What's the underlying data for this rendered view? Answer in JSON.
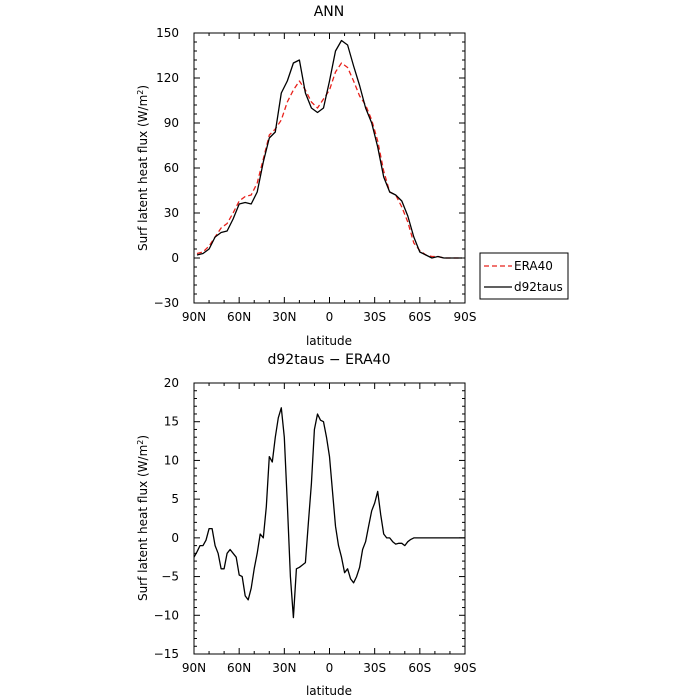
{
  "chart_data": [
    {
      "type": "line",
      "title": "ANN",
      "xlabel": "latitude",
      "ylabel": "Surf latent heat flux (W/m²)",
      "ylabel_main": "Surf latent heat flux (W/m",
      "ylabel_sup": "2",
      "ylabel_close": ")",
      "xlim": [
        90,
        -90
      ],
      "ylim": [
        -30,
        150
      ],
      "x_ticks": [
        90,
        60,
        30,
        0,
        -30,
        -60,
        -90
      ],
      "x_tick_labels": [
        "90N",
        "60N",
        "30N",
        "0",
        "30S",
        "60S",
        "90S"
      ],
      "y_ticks": [
        -30,
        0,
        30,
        60,
        90,
        120,
        150
      ],
      "y_tick_labels": [
        "−30",
        "0",
        "30",
        "60",
        "90",
        "120",
        "150"
      ],
      "grid": false,
      "legend": "right-outside",
      "series": [
        {
          "name": "ERA40",
          "color": "#e8211b",
          "style": "dashed",
          "x": [
            88,
            84,
            80,
            76,
            72,
            68,
            64,
            60,
            56,
            52,
            48,
            44,
            40,
            36,
            32,
            28,
            24,
            20,
            16,
            12,
            8,
            4,
            0,
            -4,
            -8,
            -12,
            -16,
            -20,
            -24,
            -28,
            -32,
            -36,
            -40,
            -44,
            -48,
            -52,
            -56,
            -60,
            -64,
            -68,
            -72,
            -76,
            -80,
            -84,
            -88
          ],
          "values": [
            3,
            4,
            8,
            14,
            20,
            23,
            30,
            38,
            41,
            42,
            50,
            66,
            82,
            86,
            92,
            104,
            112,
            118,
            112,
            104,
            100,
            106,
            112,
            124,
            130,
            127,
            118,
            108,
            102,
            92,
            78,
            58,
            44,
            42,
            34,
            24,
            10,
            5,
            2,
            1,
            1,
            0,
            0,
            0,
            0
          ]
        },
        {
          "name": "d92taus",
          "color": "#000000",
          "style": "solid",
          "x": [
            88,
            84,
            80,
            76,
            72,
            68,
            64,
            60,
            56,
            52,
            48,
            44,
            40,
            36,
            32,
            28,
            24,
            20,
            16,
            12,
            8,
            4,
            0,
            -4,
            -8,
            -12,
            -16,
            -20,
            -24,
            -28,
            -32,
            -36,
            -40,
            -44,
            -48,
            -52,
            -56,
            -60,
            -64,
            -68,
            -72,
            -76,
            -80,
            -84,
            -88
          ],
          "values": [
            2,
            3,
            6,
            14,
            17,
            18,
            26,
            36,
            37,
            36,
            44,
            64,
            80,
            84,
            110,
            118,
            130,
            132,
            110,
            100,
            97,
            100,
            118,
            138,
            145,
            142,
            128,
            115,
            100,
            90,
            74,
            54,
            44,
            42,
            38,
            28,
            14,
            4,
            2,
            0,
            1,
            0,
            0,
            0,
            0
          ]
        }
      ]
    },
    {
      "type": "line",
      "title": "d92taus − ERA40",
      "xlabel": "latitude",
      "ylabel": "Surf latent heat flux (W/m²)",
      "ylabel_main": "Surf latent heat flux (W/m",
      "ylabel_sup": "2",
      "ylabel_close": ")",
      "xlim": [
        90,
        -90
      ],
      "ylim": [
        -15,
        20
      ],
      "x_ticks": [
        90,
        60,
        30,
        0,
        -30,
        -60,
        -90
      ],
      "x_tick_labels": [
        "90N",
        "60N",
        "30N",
        "0",
        "30S",
        "60S",
        "90S"
      ],
      "y_ticks": [
        -15,
        -10,
        -5,
        0,
        5,
        10,
        15,
        20
      ],
      "y_tick_labels": [
        "−15",
        "−10",
        "−5",
        "0",
        "5",
        "10",
        "15",
        "20"
      ],
      "grid": false,
      "series": [
        {
          "color": "#000000",
          "style": "solid",
          "x": [
            90,
            88,
            86,
            84,
            82,
            80,
            78,
            76,
            74,
            72,
            70,
            68,
            66,
            64,
            62,
            60,
            58,
            56,
            54,
            52,
            50,
            48,
            46,
            44,
            42,
            40,
            38,
            36,
            34,
            32,
            30,
            28,
            26,
            24,
            22,
            20,
            18,
            16,
            14,
            12,
            10,
            8,
            6,
            4,
            2,
            0,
            -2,
            -4,
            -6,
            -8,
            -10,
            -12,
            -14,
            -16,
            -18,
            -20,
            -22,
            -24,
            -26,
            -28,
            -30,
            -32,
            -34,
            -36,
            -38,
            -40,
            -42,
            -44,
            -46,
            -48,
            -50,
            -52,
            -54,
            -56,
            -58,
            -60,
            -62,
            -64,
            -66,
            -68,
            -70,
            -72,
            -74,
            -76,
            -78,
            -80,
            -82,
            -84,
            -86,
            -88,
            -90
          ],
          "values": [
            -2.5,
            -1.8,
            -1.0,
            -1.0,
            -0.3,
            1.2,
            1.2,
            -1.0,
            -2.0,
            -4.0,
            -4.0,
            -2.0,
            -1.5,
            -2.0,
            -2.5,
            -4.8,
            -5.0,
            -7.5,
            -8.0,
            -6.5,
            -4.0,
            -2.0,
            0.5,
            0.0,
            4.0,
            10.5,
            9.8,
            13.0,
            15.5,
            16.8,
            13.0,
            4.5,
            -5.0,
            -10.3,
            -4.0,
            -3.8,
            -3.5,
            -3.2,
            2.0,
            7.0,
            14.0,
            16.0,
            15.2,
            15.0,
            13.0,
            10.5,
            6.0,
            1.5,
            -1.0,
            -2.5,
            -4.5,
            -4.0,
            -5.3,
            -5.8,
            -5.0,
            -3.8,
            -1.5,
            -0.5,
            1.5,
            3.5,
            4.5,
            6.0,
            3.0,
            0.5,
            0.0,
            0.0,
            -0.5,
            -0.8,
            -0.7,
            -0.7,
            -1.0,
            -0.5,
            -0.2,
            0.0,
            0.0,
            0.0,
            0.0,
            0.0,
            0.0,
            0.0,
            0.0,
            0.0,
            0.0,
            0.0,
            0.0,
            0.0,
            0.0,
            0.0,
            0.0,
            0.0,
            0.0
          ]
        }
      ]
    }
  ]
}
